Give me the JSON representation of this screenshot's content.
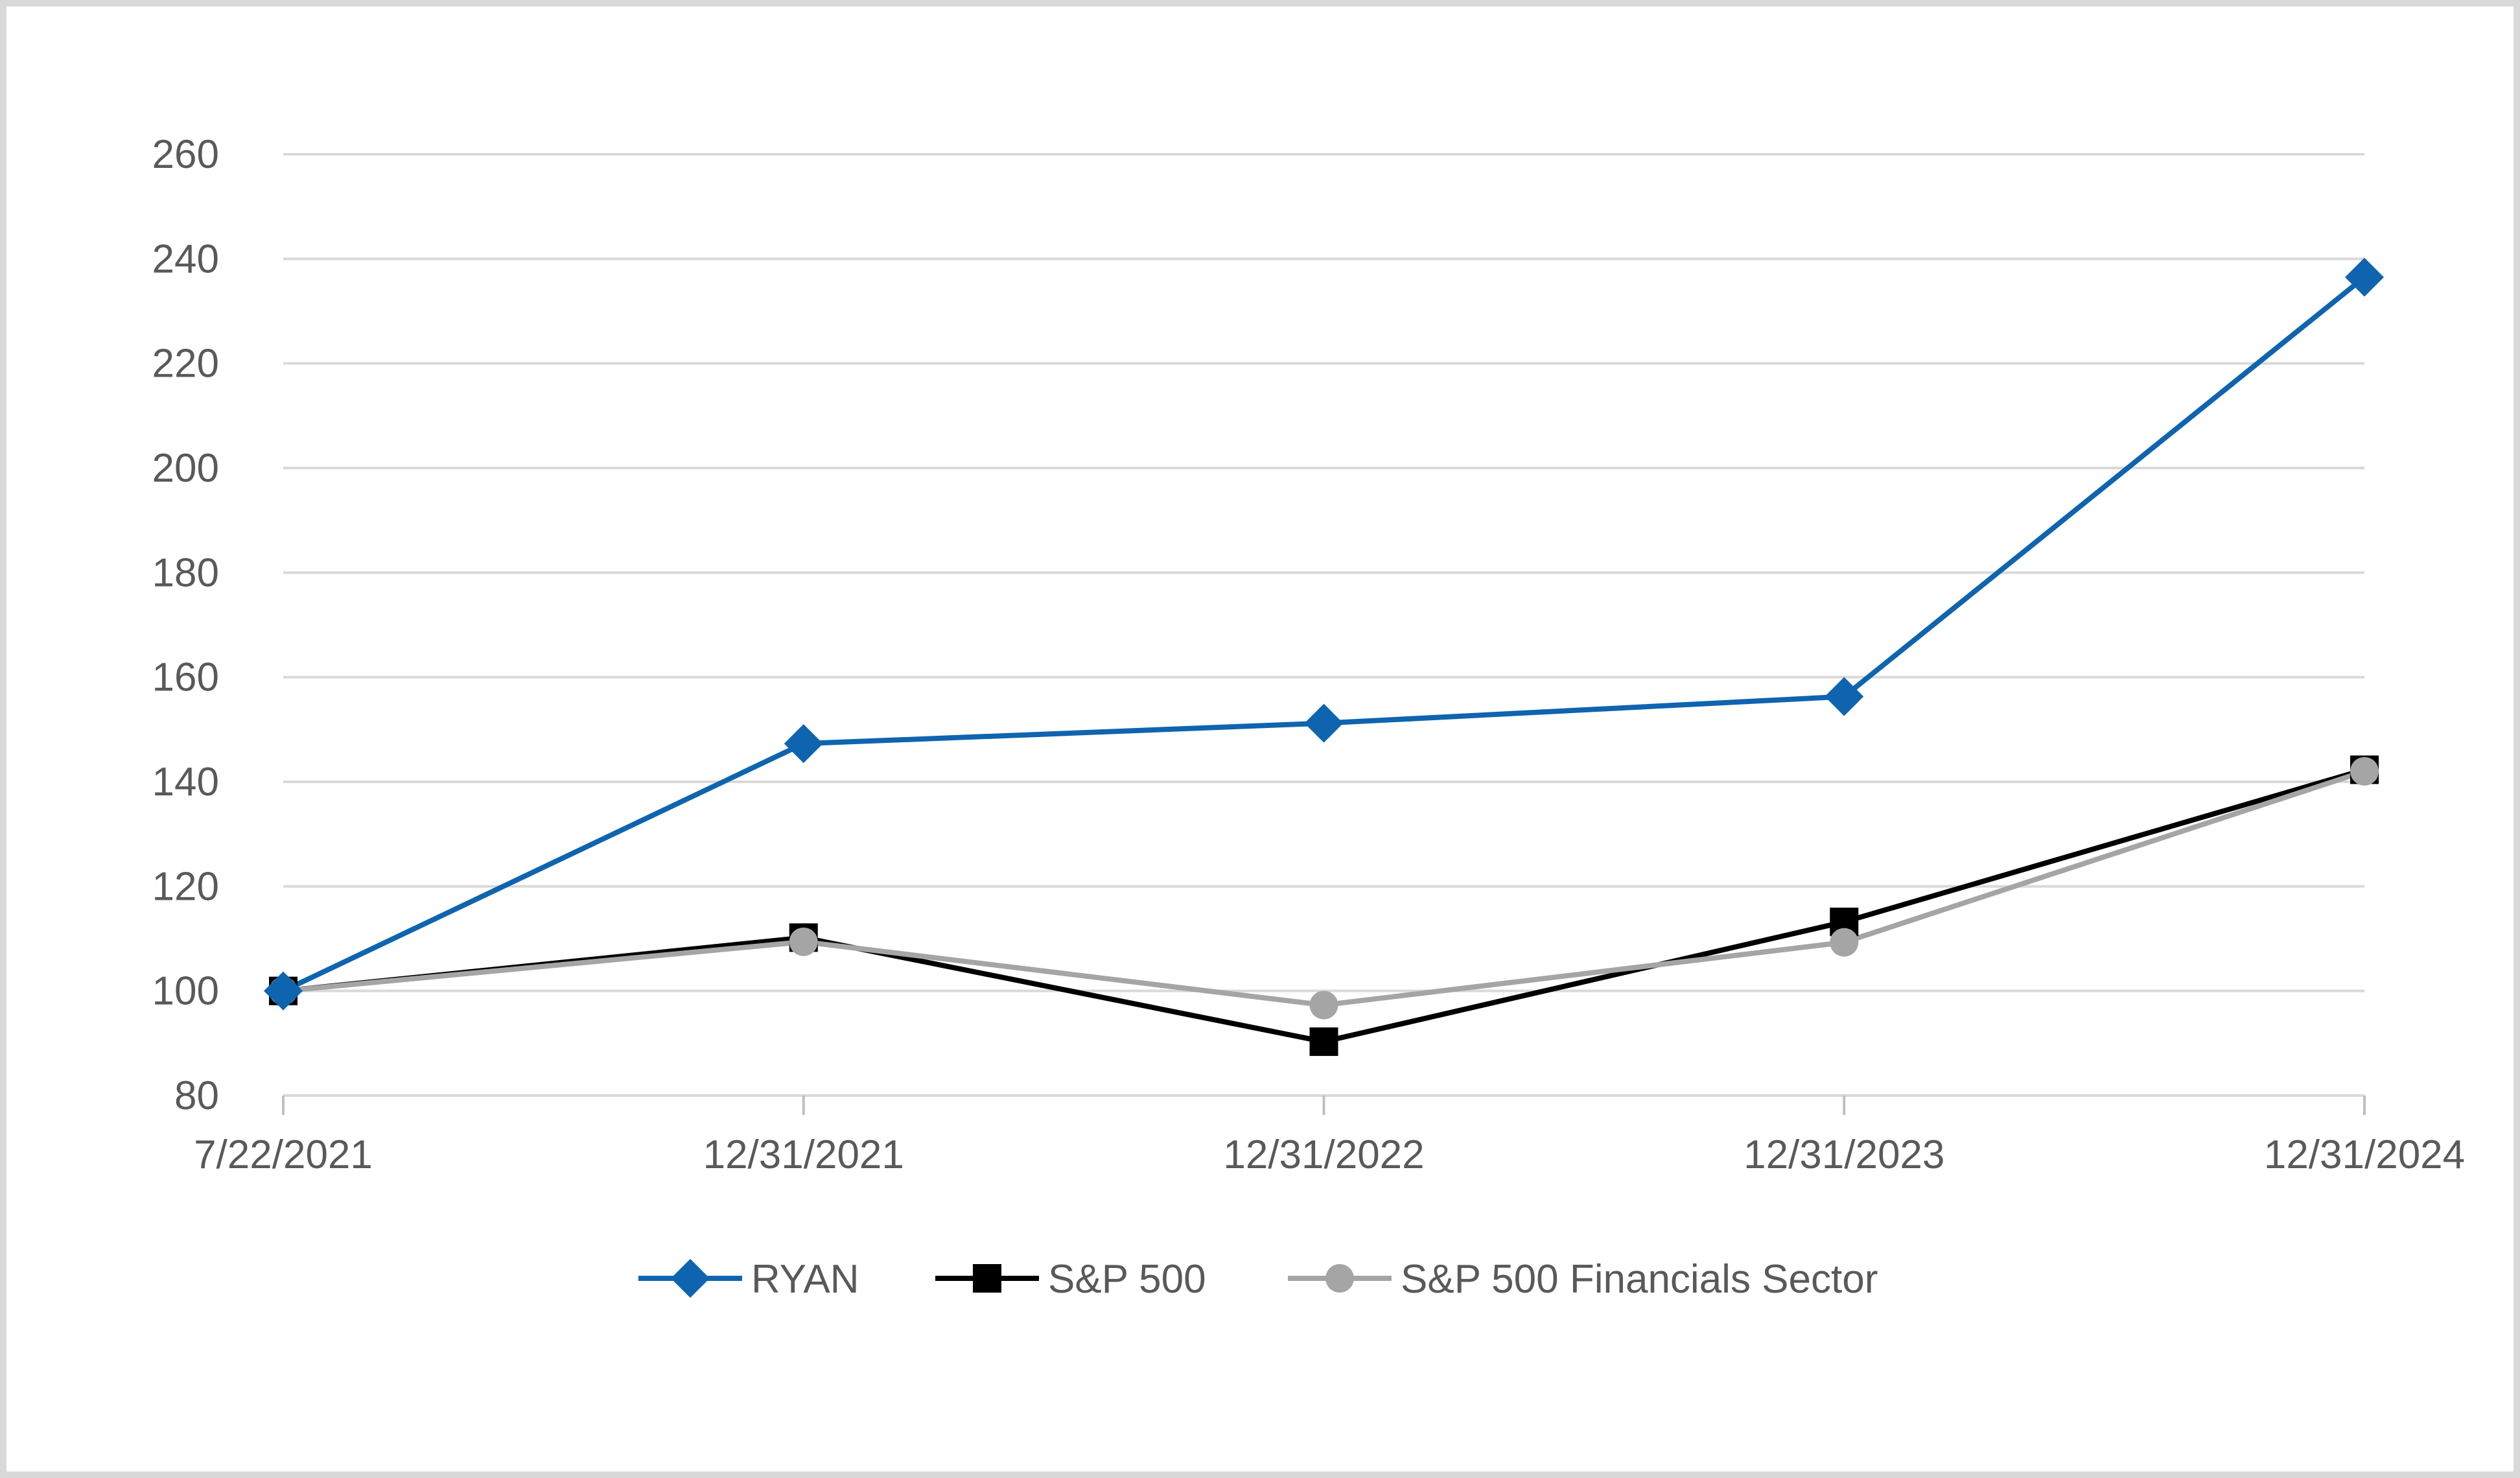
{
  "chart_data": {
    "type": "line",
    "title": "",
    "xlabel": "",
    "ylabel": "",
    "categories": [
      "7/22/2021",
      "12/31/2021",
      "12/31/2022",
      "12/31/2023",
      "12/31/2024"
    ],
    "ylim": [
      80,
      260
    ],
    "yticks": [
      80,
      100,
      120,
      140,
      160,
      180,
      200,
      220,
      240,
      260
    ],
    "grid": true,
    "legend_position": "bottom",
    "series": [
      {
        "name": "RYAN",
        "values": [
          100,
          147.3,
          151.2,
          156.3,
          236.5
        ],
        "color": "#0F64AF",
        "marker": "diamond"
      },
      {
        "name": "S&P 500",
        "values": [
          100,
          110.2,
          90.3,
          113.2,
          142.3
        ],
        "color": "#000000",
        "marker": "square"
      },
      {
        "name": "S&P 500 Financials Sector",
        "values": [
          100,
          109.4,
          97.3,
          109.3,
          142.0
        ],
        "color": "#A5A5A5",
        "marker": "circle"
      }
    ]
  }
}
